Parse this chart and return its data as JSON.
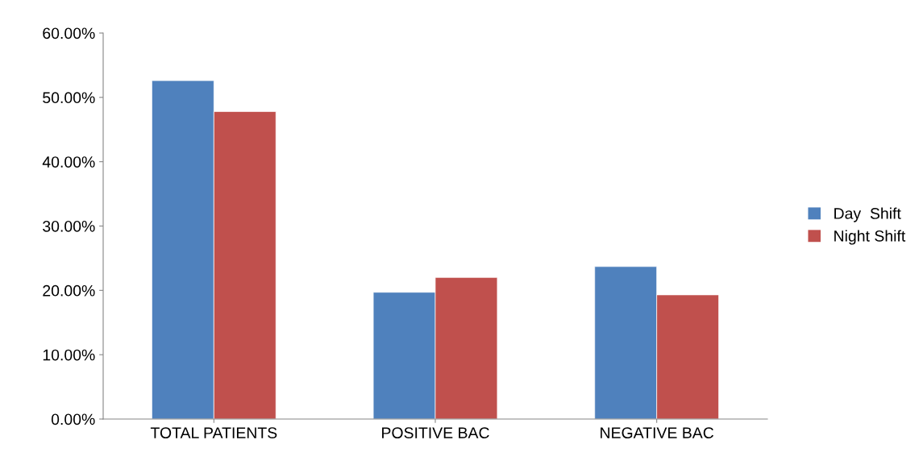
{
  "chart_data": {
    "type": "bar",
    "categories": [
      "TOTAL PATIENTS",
      "POSITIVE BAC",
      "NEGATIVE BAC"
    ],
    "series": [
      {
        "name": "Day  Shift",
        "color": "#4f81bd",
        "values": [
          52.6,
          19.7,
          23.7
        ]
      },
      {
        "name": "Night Shift",
        "color": "#c0504d",
        "values": [
          47.8,
          22.0,
          19.3
        ]
      }
    ],
    "ylim": [
      0,
      60
    ],
    "yticks": [
      {
        "value": 0,
        "label": "0.00%"
      },
      {
        "value": 10,
        "label": "10.00%"
      },
      {
        "value": 20,
        "label": "20.00%"
      },
      {
        "value": 30,
        "label": "30.00%"
      },
      {
        "value": 40,
        "label": "40.00%"
      },
      {
        "value": 50,
        "label": "50.00%"
      },
      {
        "value": 60,
        "label": "60.00%"
      }
    ],
    "grid": false,
    "legend": "right"
  }
}
